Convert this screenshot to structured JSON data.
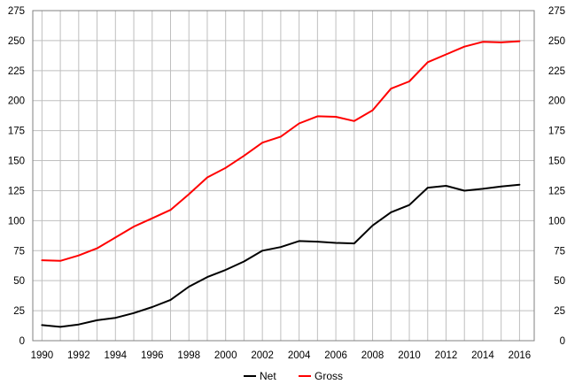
{
  "chart_data": {
    "type": "line",
    "title": "",
    "xlabel": "",
    "ylabel": "",
    "x": [
      1990,
      1991,
      1992,
      1993,
      1994,
      1995,
      1996,
      1997,
      1998,
      1999,
      2000,
      2001,
      2002,
      2003,
      2004,
      2005,
      2006,
      2007,
      2008,
      2009,
      2010,
      2011,
      2012,
      2013,
      2014,
      2015,
      2016
    ],
    "xlim": [
      1989.5,
      2016.8
    ],
    "ylim": [
      0,
      275
    ],
    "x_ticks": [
      1990,
      1992,
      1994,
      1996,
      1998,
      2000,
      2002,
      2004,
      2006,
      2008,
      2010,
      2012,
      2014,
      2016
    ],
    "y_ticks": [
      0,
      25,
      50,
      75,
      100,
      125,
      150,
      175,
      200,
      225,
      250,
      275
    ],
    "grid": true,
    "series": [
      {
        "name": "Net",
        "color": "#000000",
        "values": [
          13,
          11.5,
          13.5,
          17,
          19,
          23,
          28,
          34,
          45,
          53,
          59,
          66,
          75,
          78,
          83,
          82.5,
          81.5,
          81,
          96,
          107,
          113,
          127.5,
          129,
          125,
          126.5,
          128.5,
          130
        ]
      },
      {
        "name": "Gross",
        "color": "#ff0000",
        "values": [
          67,
          66.5,
          71,
          77,
          86,
          95,
          102,
          109,
          122,
          136,
          144,
          154,
          165,
          170,
          181,
          187,
          186.5,
          183,
          192,
          210,
          216,
          232,
          238.5,
          245,
          249,
          248.5,
          249.5
        ]
      }
    ],
    "legend": {
      "position": "bottom-center",
      "entries": [
        "Net",
        "Gross"
      ]
    }
  }
}
